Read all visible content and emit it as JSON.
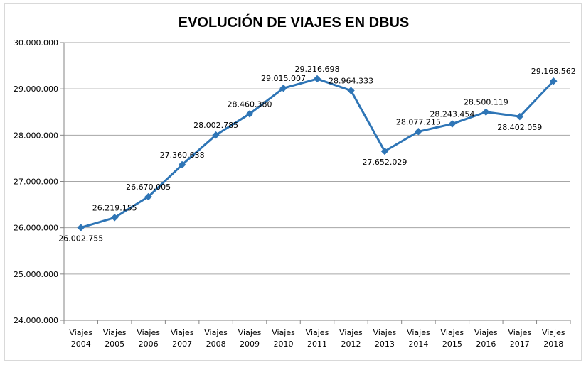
{
  "chart_data": {
    "type": "line",
    "title": "EVOLUCIÓN DE VIAJES EN DBUS",
    "xlabel": "",
    "ylabel": "",
    "categories": [
      [
        "Viajes",
        "2004"
      ],
      [
        "Viajes",
        "2005"
      ],
      [
        "Viajes",
        "2006"
      ],
      [
        "Viajes",
        "2007"
      ],
      [
        "Viajes",
        "2008"
      ],
      [
        "Viajes",
        "2009"
      ],
      [
        "Viajes",
        "2010"
      ],
      [
        "Viajes",
        "2011"
      ],
      [
        "Viajes",
        "2012"
      ],
      [
        "Viajes",
        "2013"
      ],
      [
        "Viajes",
        "2014"
      ],
      [
        "Viajes",
        "2015"
      ],
      [
        "Viajes",
        "2016"
      ],
      [
        "Viajes",
        "2017"
      ],
      [
        "Viajes",
        "2018"
      ]
    ],
    "values": [
      26002755,
      26219155,
      26670005,
      27360638,
      28002785,
      28460380,
      29015007,
      29216698,
      28964333,
      27652029,
      28077215,
      28243454,
      28500119,
      28402059,
      29168562
    ],
    "data_labels": [
      "26.002.755",
      "26.219.155",
      "26.670.005",
      "27.360.638",
      "28.002.785",
      "28.460.380",
      "29.015.007",
      "29.216.698",
      "28.964.333",
      "27.652.029",
      "28.077.215",
      "28.243.454",
      "28.500.119",
      "28.402.059",
      "29.168.562"
    ],
    "label_position": [
      "below",
      "above",
      "above",
      "above",
      "above",
      "above",
      "above",
      "above",
      "above",
      "below",
      "above",
      "above",
      "above",
      "below",
      "above"
    ],
    "ylim": [
      24000000,
      30000000
    ],
    "yticks": [
      24000000,
      25000000,
      26000000,
      27000000,
      28000000,
      29000000,
      30000000
    ],
    "ytick_labels": [
      "24.000.000",
      "25.000.000",
      "26.000.000",
      "27.000.000",
      "28.000.000",
      "29.000.000",
      "30.000.000"
    ],
    "grid": true,
    "legend": "none",
    "marker": "diamond",
    "colors": {
      "line": "#2e75b6",
      "grid": "#a6a6a6",
      "axis": "#868686",
      "text": "#000000"
    }
  }
}
